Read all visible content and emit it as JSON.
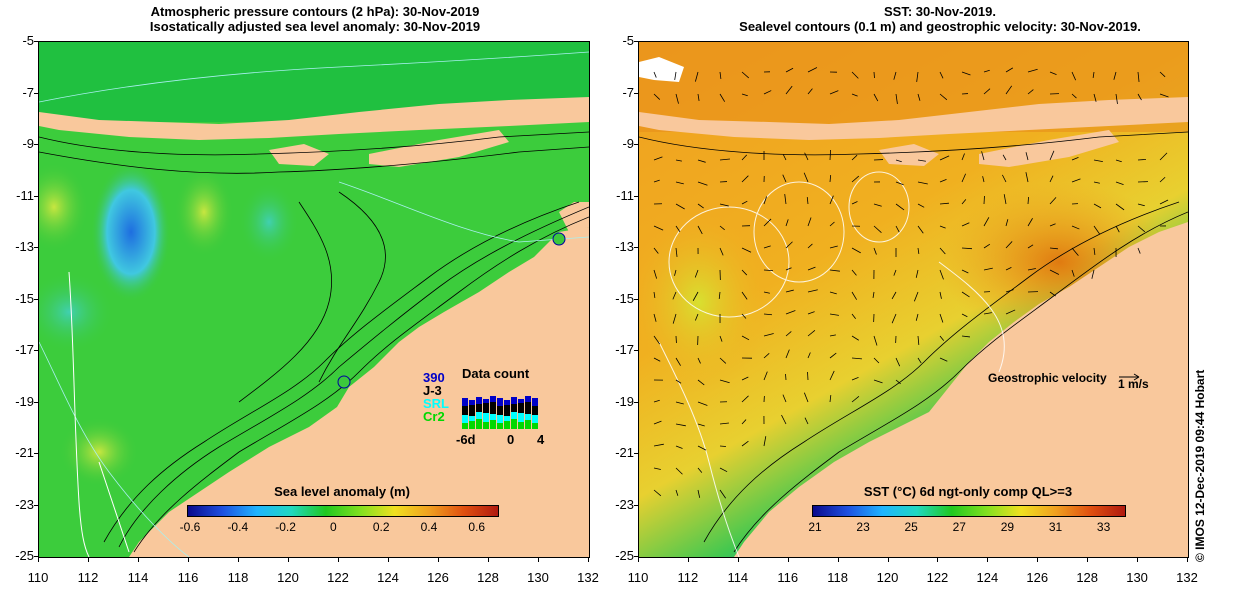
{
  "left_panel": {
    "title_line1": "Atmospheric pressure contours (2 hPa): 30-Nov-2019",
    "title_line2": "Isostatically adjusted sea level anomaly: 30-Nov-2019",
    "colorbar": {
      "title": "Sea level anomaly (m)",
      "tick_labels": [
        "-0.6",
        "-0.4",
        "-0.2",
        "0",
        "0.2",
        "0.4",
        "0.6"
      ]
    },
    "data_count": {
      "title": "Data count",
      "missions": [
        "390",
        "J-3",
        "SRL",
        "Cr2"
      ],
      "mission_colors": [
        "#0000c8",
        "#000000",
        "#00ffff",
        "#00d800"
      ],
      "axis_labels": [
        "-6d",
        "0",
        "4"
      ]
    }
  },
  "right_panel": {
    "title_line1": "SST: 30-Nov-2019.",
    "title_line2": "Sealevel contours (0.1 m) and geostrophic velocity: 30-Nov-2019.",
    "colorbar": {
      "title": "SST (°C) 6d ngt-only comp QL>=3",
      "tick_labels": [
        "21",
        "23",
        "25",
        "27",
        "29",
        "31",
        "33"
      ]
    },
    "velocity_key": {
      "label": "Geostrophic velocity",
      "unit": "1 m/s"
    }
  },
  "axes": {
    "lat_labels": [
      "-5",
      "-7",
      "-9",
      "-11",
      "-13",
      "-15",
      "-17",
      "-19",
      "-21",
      "-23",
      "-25"
    ],
    "lon_labels": [
      "110",
      "112",
      "114",
      "116",
      "118",
      "120",
      "122",
      "124",
      "126",
      "128",
      "130",
      "132"
    ]
  },
  "credit": "© IMOS 12-Dec-2019 09:44 Hobart",
  "colors": {
    "land": "#f9c89c",
    "sea_green": "#3cc83c",
    "sst_orange": "#f0a020",
    "contour": "#000000",
    "white_contour": "#ffffff"
  }
}
